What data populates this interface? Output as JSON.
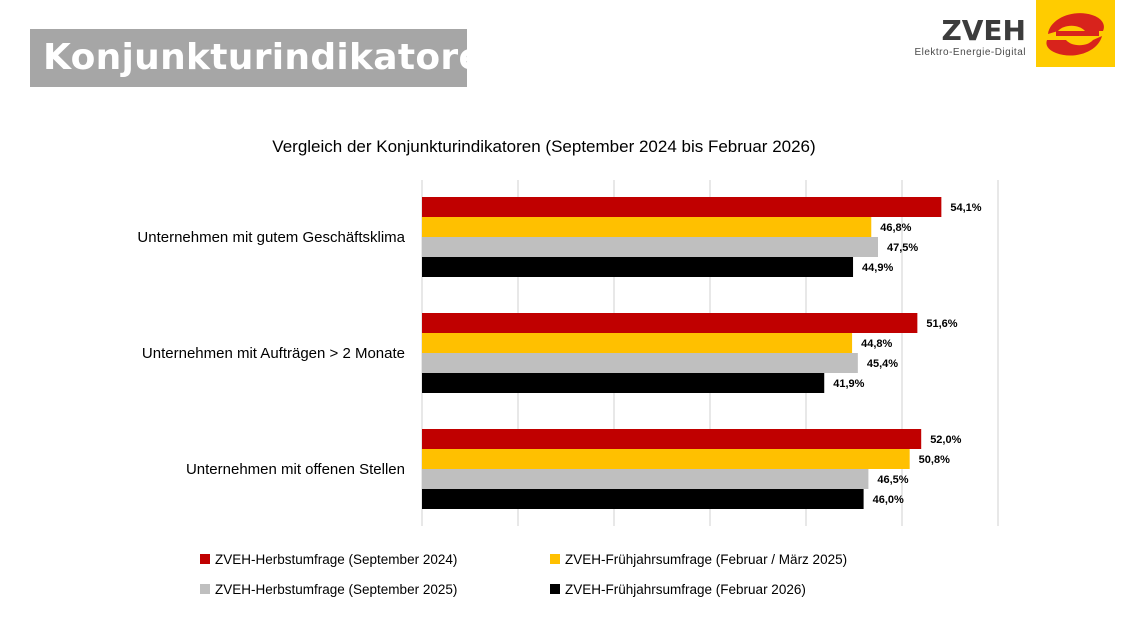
{
  "header": {
    "title": "Konjunkturindikatoren",
    "brand_name": "ZVEH",
    "brand_tagline": "Elektro-Energie-Digital"
  },
  "colors": {
    "series": [
      "#c00000",
      "#ffc000",
      "#bfbfbf",
      "#000000"
    ],
    "grid": "#d9d9d9",
    "title_box": "#a6a6a6",
    "logo": "#ffcc00"
  },
  "chart_data": {
    "type": "bar",
    "orientation": "horizontal",
    "title": "Vergleich der Konjunkturindikatoren (September 2024 bis Februar 2026)",
    "categories": [
      "Unternehmen mit gutem Geschäftsklima",
      "Unternehmen mit Aufträgen > 2 Monate",
      "Unternehmen mit offenen Stellen"
    ],
    "series": [
      {
        "name": "ZVEH-Herbstumfrage (September 2024)",
        "values": [
          54.1,
          51.6,
          52.0
        ],
        "labels": [
          "54,1%",
          "51,6%",
          "52,0%"
        ]
      },
      {
        "name": "ZVEH-Frühjahrsumfrage (Februar / März 2025)",
        "values": [
          46.8,
          44.8,
          50.8
        ],
        "labels": [
          "46,8%",
          "44,8%",
          "50,8%"
        ]
      },
      {
        "name": "ZVEH-Herbstumfrage (September 2025)",
        "values": [
          47.5,
          45.4,
          46.5
        ],
        "labels": [
          "47,5%",
          "45,4%",
          "46,5%"
        ]
      },
      {
        "name": "ZVEH-Frühjahrsumfrage (Februar 2026)",
        "values": [
          44.9,
          41.9,
          46.0
        ],
        "labels": [
          "44,9%",
          "41,9%",
          "46,0%"
        ]
      }
    ],
    "xlim": [
      0,
      60
    ],
    "grid": true,
    "gridlines_at": [
      0,
      10,
      20,
      30,
      40,
      50,
      60
    ],
    "tick_labels_shown": false,
    "legend_position": "bottom"
  }
}
